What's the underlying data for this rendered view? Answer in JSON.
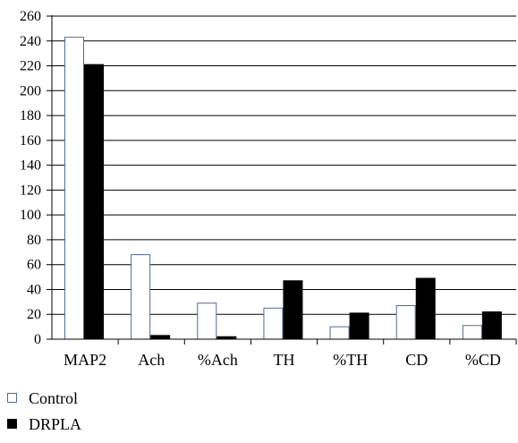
{
  "chart_data": {
    "type": "bar",
    "title": "",
    "xlabel": "",
    "ylabel": "",
    "categories": [
      "MAP2",
      "Ach",
      "%Ach",
      "TH",
      "%TH",
      "CD",
      "%CD"
    ],
    "series": [
      {
        "name": "Control",
        "fill": "#ffffff",
        "stroke": "#4a6aa0",
        "values": [
          243,
          68,
          29,
          25,
          10,
          27,
          11
        ]
      },
      {
        "name": "DRPLA",
        "fill": "#000000",
        "stroke": "#000000",
        "values": [
          221,
          3,
          2,
          47,
          21,
          49,
          22
        ]
      }
    ],
    "ylim": [
      0,
      260
    ],
    "yticks": [
      0,
      20,
      40,
      60,
      80,
      100,
      120,
      140,
      160,
      180,
      200,
      220,
      240,
      260
    ],
    "grid": true,
    "legend_position": "bottom-left"
  }
}
